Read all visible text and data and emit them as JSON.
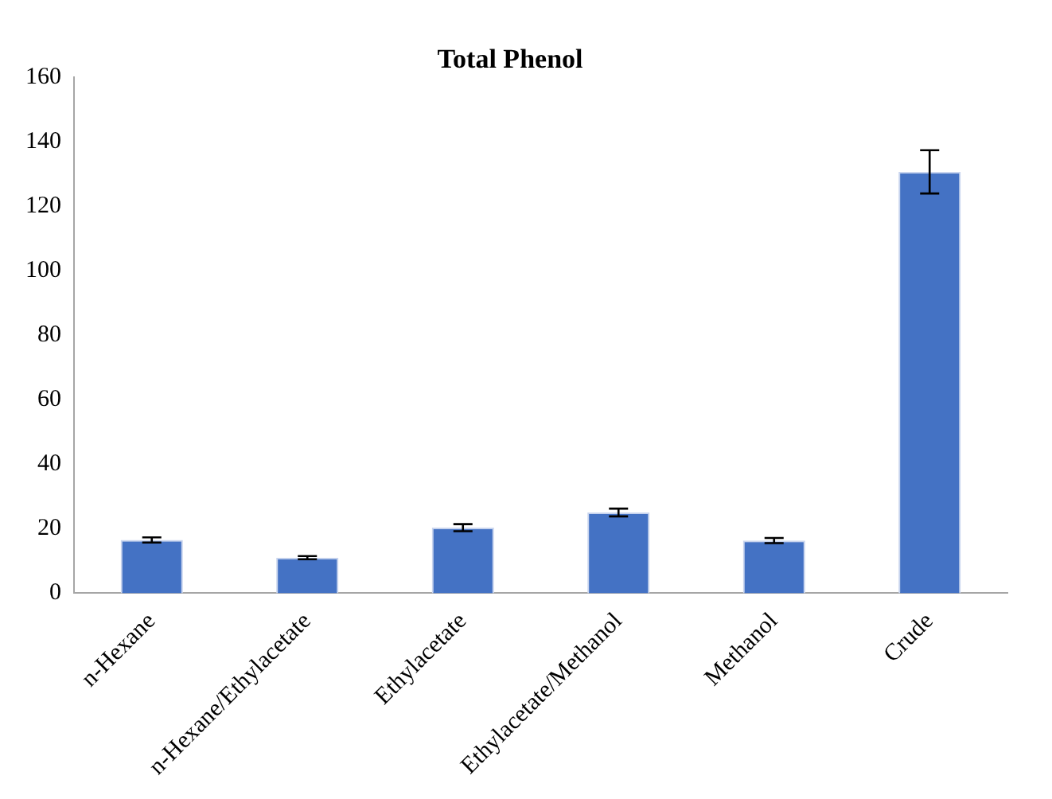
{
  "chart_data": {
    "type": "bar",
    "title": "Total Phenol",
    "categories": [
      "n-Hexane",
      "n-Hexane/Ethylacetate",
      "Ethylacetate",
      "Ethylacetate/Methanol",
      "Methanol",
      "Crude"
    ],
    "values": [
      16.5,
      11.0,
      20.3,
      25.0,
      16.3,
      130.6
    ],
    "errors": [
      0.8,
      0.5,
      1.1,
      1.2,
      0.8,
      6.7
    ],
    "color": "#4472c4",
    "ylim": [
      0,
      160
    ],
    "yticks": [
      0,
      20,
      40,
      60,
      80,
      100,
      120,
      140,
      160
    ],
    "grid": false,
    "legend": false
  }
}
